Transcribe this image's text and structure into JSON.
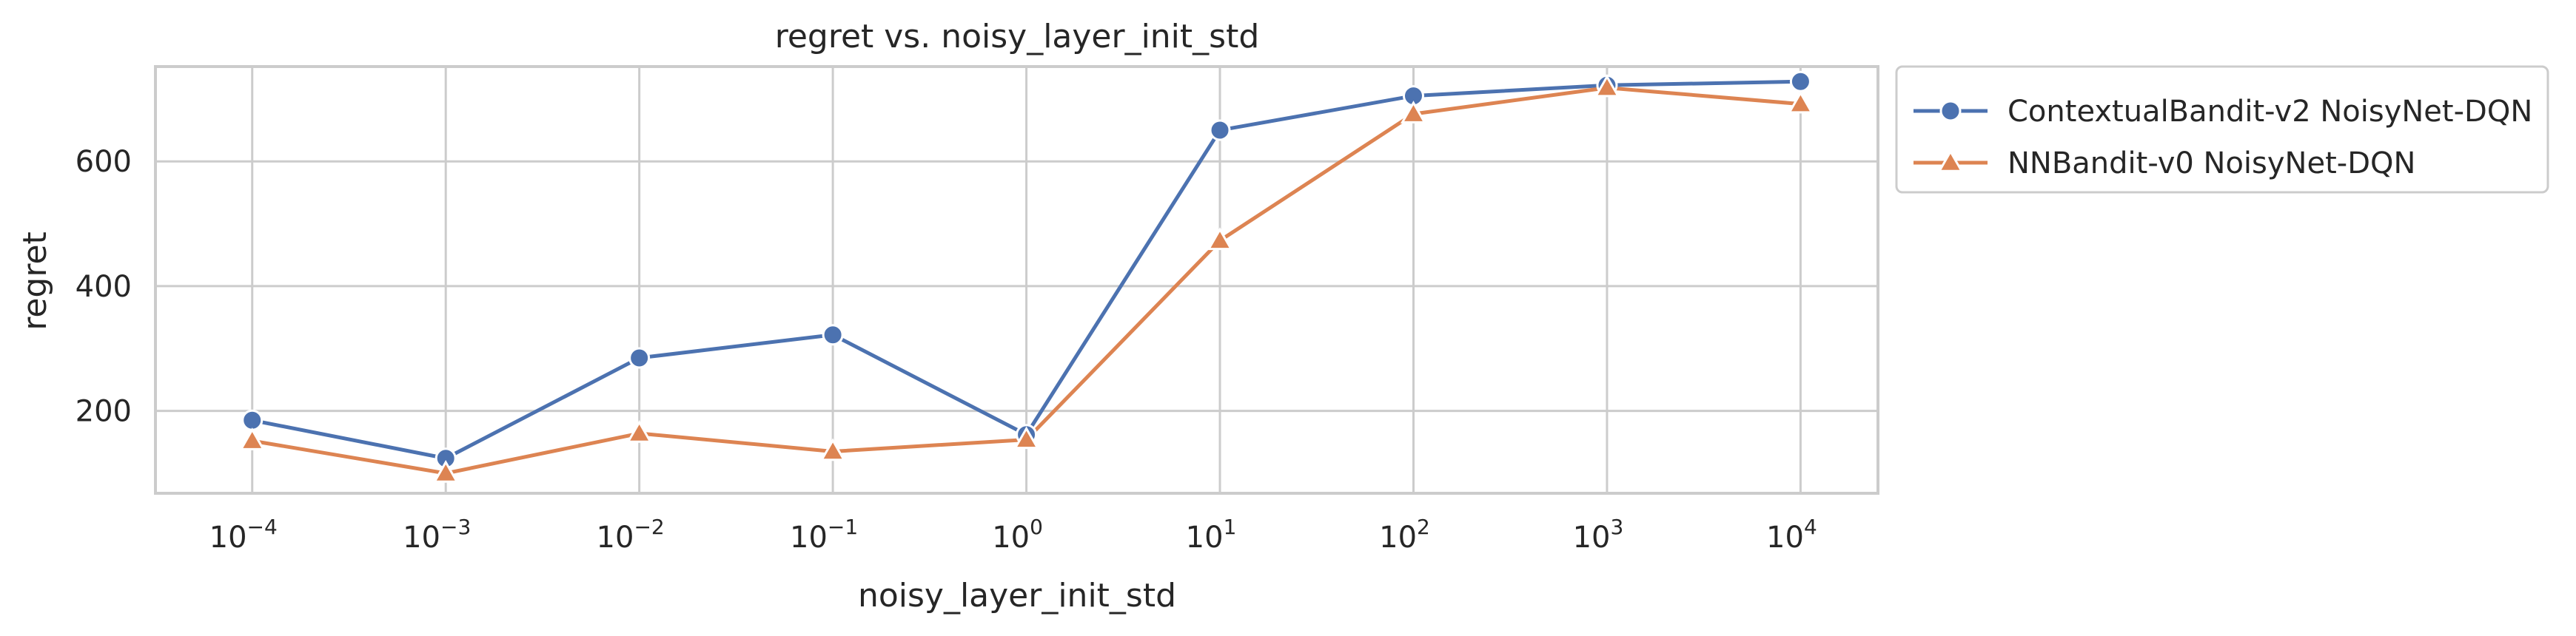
{
  "chart_data": {
    "type": "line",
    "title": "regret vs. noisy_layer_init_std",
    "xlabel": "noisy_layer_init_std",
    "ylabel": "regret",
    "x_scale": "log",
    "x_base": "10",
    "x": [
      0.0001,
      0.001,
      0.01,
      0.1,
      1,
      10,
      100,
      1000,
      10000
    ],
    "x_tick_exponents": [
      "−4",
      "−3",
      "−2",
      "−1",
      "0",
      "1",
      "2",
      "3",
      "4"
    ],
    "y_ticks": [
      "200",
      "400",
      "600"
    ],
    "y_tick_values": [
      200,
      400,
      600
    ],
    "ylim": [
      68,
      752
    ],
    "grid": true,
    "legend_position": "outside-top-right",
    "series": [
      {
        "name": "ContextualBandit-v2 NoisyNet-DQN",
        "color": "#4c72b0",
        "marker": "circle",
        "values": [
          185,
          124,
          285,
          322,
          162,
          650,
          705,
          722,
          728
        ]
      },
      {
        "name": "NNBandit-v0 NoisyNet-DQN",
        "color": "#dd8452",
        "marker": "triangle",
        "values": [
          152,
          100,
          164,
          135,
          154,
          473,
          676,
          718,
          692
        ]
      }
    ]
  }
}
